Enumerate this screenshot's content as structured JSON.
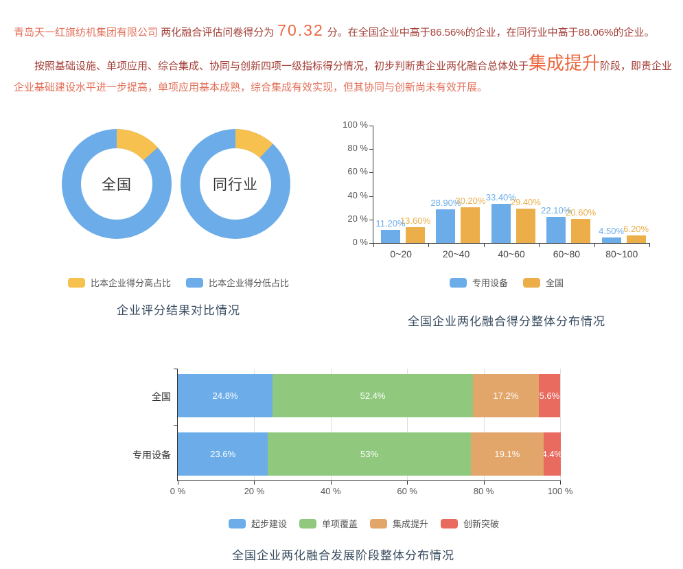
{
  "report": {
    "line1": {
      "company": "青岛天一红旗纺机集团有限公司",
      "lead": "两化融合评估问卷得分为",
      "score": "70.32",
      "tail": "分。在全国企业中高于86.56%的企业，在同行业中高于88.06%的企业。"
    },
    "line2": {
      "lead": "按照基础设施、单项应用、综合集成、协同与创新四项一级指标得分情况，初步判断贵企业两化融合总体处于",
      "stage": "集成提升",
      "mid": "阶段，即贵企业",
      "tail": "企业基础建设水平进一步提高，单项应用基本成熟，综合集成有效实现，但其协同与创新尚未有效开展。"
    }
  },
  "colors": {
    "blue": "#6CADE9",
    "yellow": "#F7C14F",
    "orange": "#EBAE49",
    "green": "#90C97E",
    "stack_orange": "#E2A66B",
    "red": "#E96B5F",
    "title": "#35495E",
    "dark_red": "#A33F38",
    "salmon": "#E2715B",
    "accent": "#EC6840"
  },
  "chart_data": [
    {
      "type": "pie",
      "title": "企业评分结果对比情况",
      "legend_position": "bottom",
      "donuts": [
        {
          "center_label": "全国",
          "slices": [
            {
              "name": "比本企业得分高占比",
              "value": 13.44
            },
            {
              "name": "比本企业得分低占比",
              "value": 86.56
            }
          ]
        },
        {
          "center_label": "同行业",
          "slices": [
            {
              "name": "比本企业得分高占比",
              "value": 11.94
            },
            {
              "name": "比本企业得分低占比",
              "value": 88.06
            }
          ]
        }
      ],
      "legend": [
        {
          "label": "比本企业得分高占比",
          "color": "#F7C14F"
        },
        {
          "label": "比本企业得分低占比",
          "color": "#6CADE9"
        }
      ]
    },
    {
      "type": "bar",
      "title": "全国企业两化融合得分整体分布情况",
      "categories": [
        "0~20",
        "20~40",
        "40~60",
        "60~80",
        "80~100"
      ],
      "series": [
        {
          "name": "专用设备",
          "color": "#6CADE9",
          "values": [
            11.2,
            28.9,
            33.4,
            22.1,
            4.5
          ]
        },
        {
          "name": "全国",
          "color": "#EBAE49",
          "values": [
            13.6,
            30.2,
            29.4,
            20.6,
            6.2
          ]
        }
      ],
      "ylim": [
        0,
        100
      ],
      "y_ticks": [
        "0 %",
        "20 %",
        "40 %",
        "60 %",
        "80 %",
        "100 %"
      ],
      "grid": false,
      "legend_position": "bottom"
    },
    {
      "type": "bar",
      "stacked": true,
      "orientation": "horizontal",
      "title": "全国企业两化融合发展阶段整体分布情况",
      "categories": [
        "全国",
        "专用设备"
      ],
      "series": [
        {
          "name": "起步建设",
          "color": "#6CADE9",
          "values": [
            24.8,
            23.6
          ]
        },
        {
          "name": "单项覆盖",
          "color": "#90C97E",
          "values": [
            52.4,
            53
          ]
        },
        {
          "name": "集成提升",
          "color": "#E2A66B",
          "values": [
            17.2,
            19.1
          ]
        },
        {
          "name": "创新突破",
          "color": "#E96B5F",
          "values": [
            5.6,
            4.4
          ]
        }
      ],
      "xlim": [
        0,
        100
      ],
      "x_ticks": [
        "0 %",
        "20 %",
        "40 %",
        "60 %",
        "80 %",
        "100 %"
      ],
      "grid": true,
      "legend_position": "bottom"
    }
  ]
}
